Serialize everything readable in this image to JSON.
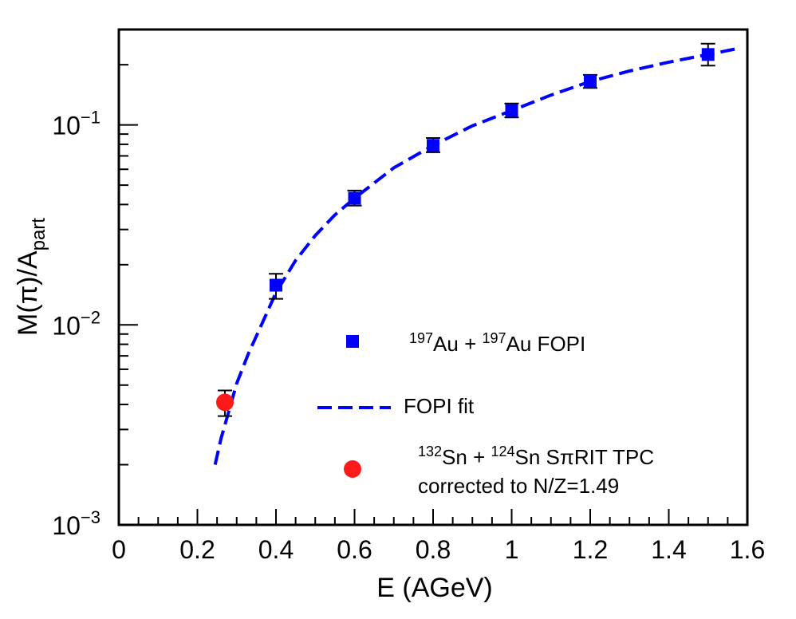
{
  "chart_data": {
    "type": "scatter",
    "xlabel": "E (AGeV)",
    "ylabel": "M(π)/A",
    "ylabel_sub": "part",
    "xlim": [
      0,
      1.6
    ],
    "ylim": [
      0.001,
      0.3
    ],
    "yscale": "log",
    "grid": false,
    "legend_position": "center-right",
    "x_ticks": [
      "0",
      "0.2",
      "0.4",
      "0.6",
      "0.8",
      "1",
      "1.2",
      "1.4",
      "1.6"
    ],
    "y_ticks": [
      {
        "base": "10",
        "exp": "−3",
        "value": 0.001
      },
      {
        "base": "10",
        "exp": "−2",
        "value": 0.01
      },
      {
        "base": "10",
        "exp": "−1",
        "value": 0.1
      }
    ],
    "series": [
      {
        "marker": "square",
        "color": "#0000ff",
        "x": [
          0.4,
          0.6,
          0.8,
          1.0,
          1.2,
          1.5
        ],
        "y": [
          0.0158,
          0.043,
          0.079,
          0.118,
          0.165,
          0.225
        ],
        "yerr_low": [
          0.0135,
          0.0395,
          0.073,
          0.109,
          0.153,
          0.198
        ],
        "yerr_high": [
          0.018,
          0.047,
          0.086,
          0.128,
          0.178,
          0.255
        ]
      },
      {
        "line": "dashed",
        "color": "#0000ff",
        "x": [
          0.245,
          0.26,
          0.28,
          0.3,
          0.33,
          0.36,
          0.4,
          0.45,
          0.5,
          0.55,
          0.6,
          0.7,
          0.8,
          0.9,
          1.0,
          1.1,
          1.2,
          1.3,
          1.4,
          1.5,
          1.58
        ],
        "y": [
          0.002,
          0.0027,
          0.0037,
          0.0051,
          0.0072,
          0.0097,
          0.0145,
          0.021,
          0.028,
          0.0355,
          0.043,
          0.061,
          0.079,
          0.099,
          0.118,
          0.141,
          0.165,
          0.186,
          0.206,
          0.225,
          0.242
        ]
      },
      {
        "marker": "circle",
        "color": "#ff1a1a",
        "x": [
          0.27
        ],
        "y": [
          0.0041
        ],
        "yerr_low": [
          0.0035
        ],
        "yerr_high": [
          0.0047
        ]
      }
    ],
    "legend": [
      {
        "kind": "square",
        "color": "#0000ff",
        "parts": [
          {
            "t": "197",
            "sup": true
          },
          {
            "t": "Au + "
          },
          {
            "t": "197",
            "sup": true
          },
          {
            "t": "Au  FOPI"
          }
        ]
      },
      {
        "kind": "dash",
        "color": "#0000ff",
        "parts": [
          {
            "t": "FOPI fit"
          }
        ]
      },
      {
        "kind": "circle",
        "color": "#ff1a1a",
        "parts": [
          {
            "t": "132",
            "sup": true
          },
          {
            "t": "Sn + "
          },
          {
            "t": "124",
            "sup": true
          },
          {
            "t": "Sn SπRIT TPC"
          }
        ],
        "line2": "corrected to N/Z=1.49"
      }
    ]
  }
}
